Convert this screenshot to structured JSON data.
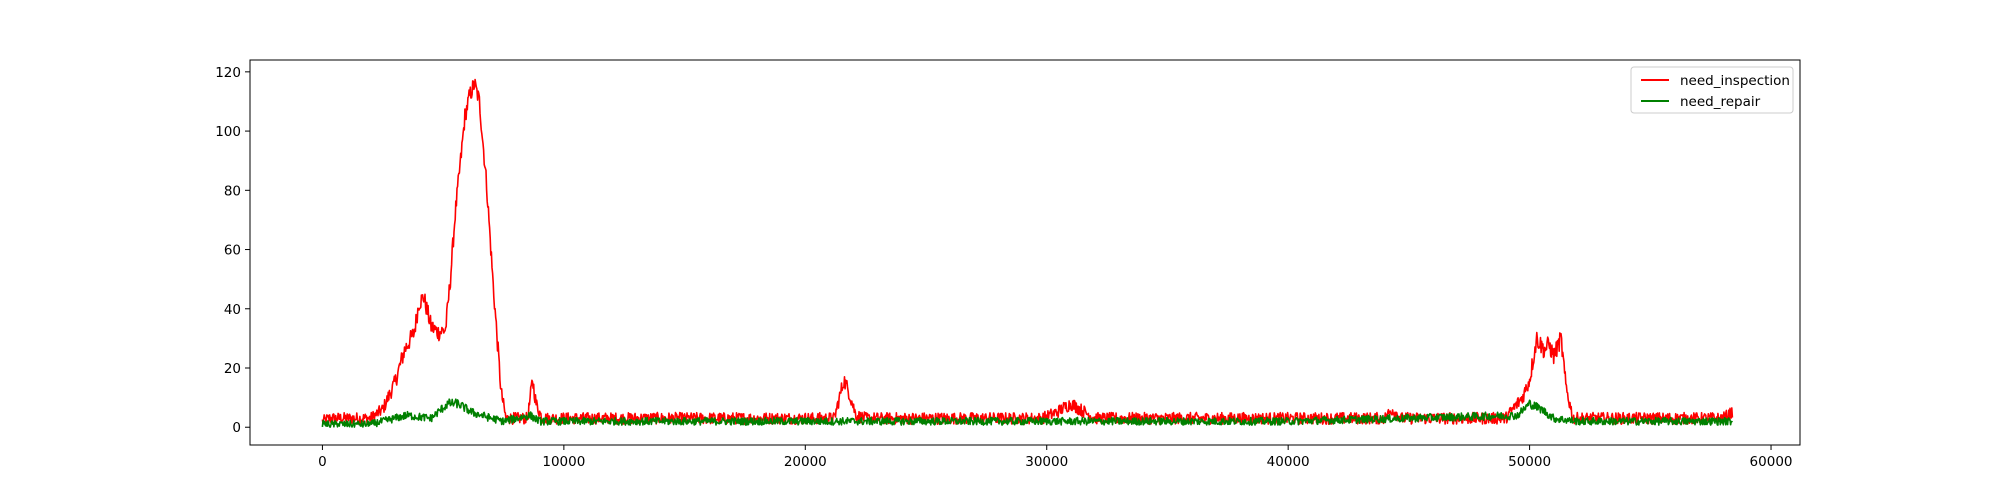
{
  "chart_data": {
    "type": "line",
    "title": "",
    "xlabel": "",
    "ylabel": "",
    "xlim": [
      -3000,
      61200
    ],
    "ylim": [
      -6,
      124
    ],
    "xticks": [
      0,
      10000,
      20000,
      30000,
      40000,
      50000,
      60000
    ],
    "yticks": [
      0,
      20,
      40,
      60,
      80,
      100,
      120
    ],
    "grid": false,
    "legend_position": "upper right",
    "series": [
      {
        "name": "need_inspection",
        "color": "#ff0000",
        "noise": 3,
        "x": [
          0,
          300,
          2000,
          2500,
          3000,
          3400,
          3800,
          4000,
          4200,
          4500,
          4800,
          5100,
          5300,
          5500,
          5700,
          5900,
          6100,
          6300,
          6500,
          6800,
          7100,
          7400,
          7600,
          8000,
          8500,
          8700,
          8850,
          9100,
          9500,
          12000,
          15000,
          18000,
          21200,
          21600,
          21800,
          22100,
          22500,
          25000,
          28000,
          29800,
          30400,
          31000,
          31400,
          32000,
          35000,
          38000,
          41000,
          44000,
          44300,
          44700,
          47000,
          49000,
          49700,
          50000,
          50300,
          50600,
          50800,
          51000,
          51300,
          51500,
          51800,
          53000,
          56000,
          58000,
          58400
        ],
        "y": [
          2,
          3,
          3,
          6,
          15,
          26,
          32,
          42,
          44,
          34,
          32,
          33,
          50,
          72,
          88,
          105,
          112,
          116,
          110,
          82,
          45,
          12,
          3,
          3,
          3,
          16,
          8,
          3,
          3,
          3,
          3,
          3,
          3,
          16,
          12,
          4,
          3,
          3,
          3,
          3,
          5,
          8,
          6,
          3,
          3,
          3,
          3,
          3,
          6,
          3,
          3,
          3,
          10,
          16,
          30,
          26,
          28,
          24,
          30,
          14,
          3,
          3,
          3,
          3,
          5
        ]
      },
      {
        "name": "need_repair",
        "color": "#008000",
        "noise": 2,
        "x": [
          0,
          2000,
          3500,
          4500,
          5200,
          5600,
          6200,
          7000,
          7500,
          8600,
          9000,
          10000,
          20000,
          30000,
          40000,
          49500,
          50000,
          50500,
          51000,
          52000,
          58400
        ],
        "y": [
          1,
          1,
          4,
          3,
          8,
          8,
          5,
          3,
          2,
          4,
          2,
          2,
          2,
          2,
          2,
          4,
          8,
          6,
          3,
          2,
          2
        ]
      }
    ]
  }
}
